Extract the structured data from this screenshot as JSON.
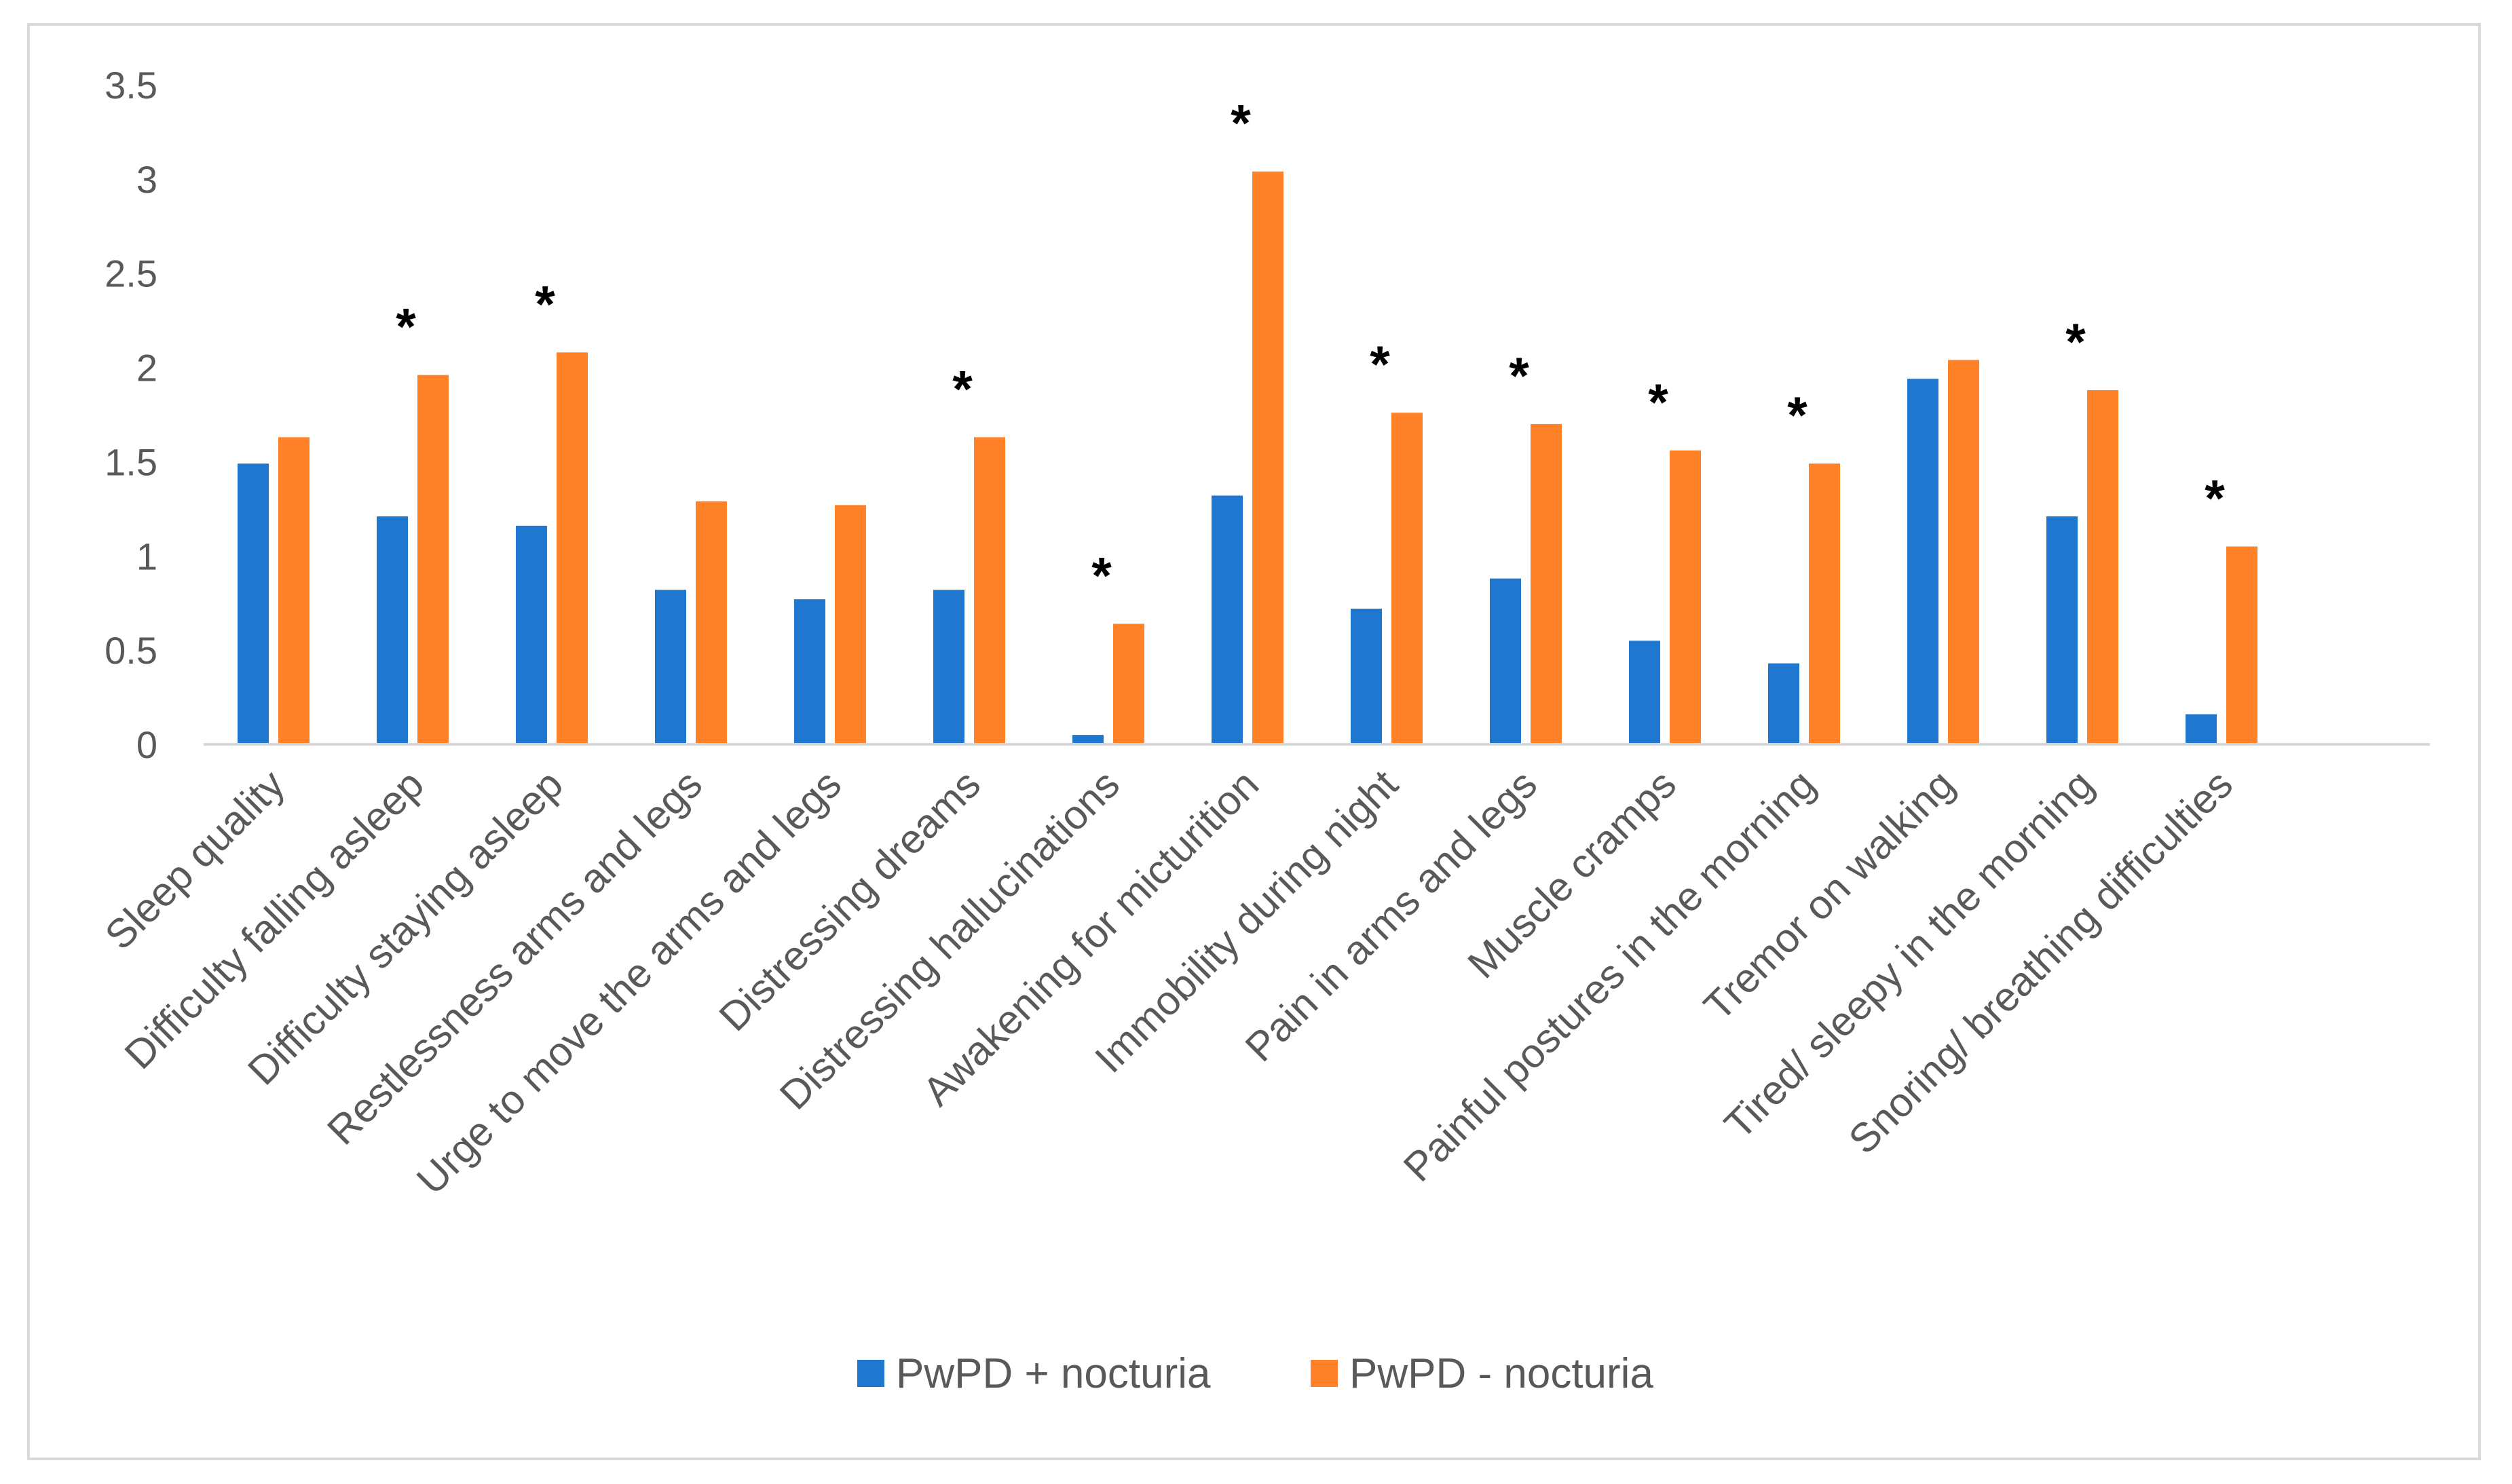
{
  "chart_data": {
    "type": "bar",
    "title": "",
    "xlabel": "",
    "ylabel": "",
    "ylim": [
      0,
      3.5
    ],
    "yticks": [
      "0",
      "0.5",
      "1",
      "1.5",
      "2",
      "2.5",
      "3",
      "3.5"
    ],
    "categories": [
      "Sleep quality",
      "Difficulty falling asleep",
      "Difficulty staying asleep",
      "Restlessness arms and legs",
      "Urge to move the arms and legs",
      "Distressing dreams",
      "Distressing hallucinations",
      "Awakening for micturition",
      "Immobility during night",
      "Pain in arms and legs",
      "Muscle cramps",
      "Painful postures in the morning",
      "Tremor on walking",
      "Tired/ sleepy in the morning",
      "Snoring/ breathing difficulties"
    ],
    "series": [
      {
        "name": "PwPD + nocturia",
        "color": "#1f77d0",
        "values": [
          1.49,
          1.21,
          1.16,
          0.82,
          0.77,
          0.82,
          0.05,
          1.32,
          0.72,
          0.88,
          0.55,
          0.43,
          1.94,
          1.21,
          0.16
        ]
      },
      {
        "name": "PwPD - nocturia",
        "color": "#ff8228",
        "values": [
          1.63,
          1.96,
          2.08,
          1.29,
          1.27,
          1.63,
          0.64,
          3.04,
          1.76,
          1.7,
          1.56,
          1.49,
          2.04,
          1.88,
          1.05
        ]
      }
    ],
    "significance_symbol": "*",
    "significant": [
      false,
      true,
      true,
      false,
      false,
      true,
      true,
      true,
      true,
      true,
      true,
      true,
      false,
      true,
      true
    ],
    "legend": {
      "position": "bottom-center"
    },
    "grid": false
  }
}
